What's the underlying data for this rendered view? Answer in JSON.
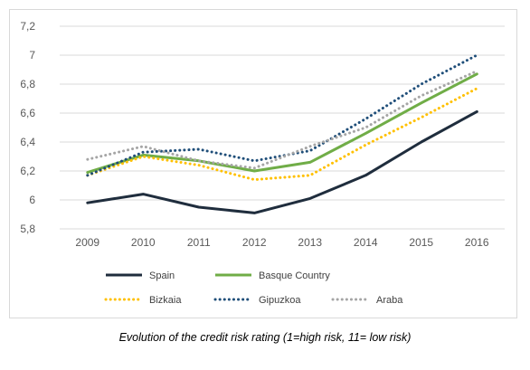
{
  "caption": "Evolution of the credit risk rating (1=high risk, 11= low risk)",
  "chart_data": {
    "type": "line",
    "title": "",
    "xlabel": "",
    "ylabel": "",
    "x": [
      "2009",
      "2010",
      "2011",
      "2012",
      "2013",
      "2014",
      "2015",
      "2016"
    ],
    "ylim": [
      5.8,
      7.2
    ],
    "yticks": [
      5.8,
      6.0,
      6.2,
      6.4,
      6.6,
      6.8,
      7.0,
      7.2
    ],
    "ytick_labels": [
      "5,8",
      "6",
      "6,2",
      "6,4",
      "6,6",
      "6,8",
      "7",
      "7,2"
    ],
    "grid": "horizontal",
    "legend_position": "bottom",
    "series": [
      {
        "name": "Spain",
        "values": [
          5.98,
          6.04,
          5.95,
          5.91,
          6.01,
          6.17,
          6.4,
          6.61
        ],
        "color": "#1f2d3d",
        "style": "solid"
      },
      {
        "name": "Basque Country",
        "values": [
          6.19,
          6.31,
          6.27,
          6.2,
          6.26,
          6.46,
          6.67,
          6.87
        ],
        "color": "#70ad47",
        "style": "solid"
      },
      {
        "name": "Bizkaia",
        "values": [
          6.17,
          6.3,
          6.24,
          6.14,
          6.17,
          6.38,
          6.57,
          6.77
        ],
        "color": "#ffc000",
        "style": "dotted"
      },
      {
        "name": "Gipuzkoa",
        "values": [
          6.17,
          6.33,
          6.35,
          6.27,
          6.34,
          6.56,
          6.8,
          7.0
        ],
        "color": "#1f4e79",
        "style": "dotted"
      },
      {
        "name": "Araba",
        "values": [
          6.28,
          6.37,
          6.27,
          6.22,
          6.37,
          6.5,
          6.72,
          6.89
        ],
        "color": "#a5a5a5",
        "style": "dotted"
      }
    ]
  }
}
